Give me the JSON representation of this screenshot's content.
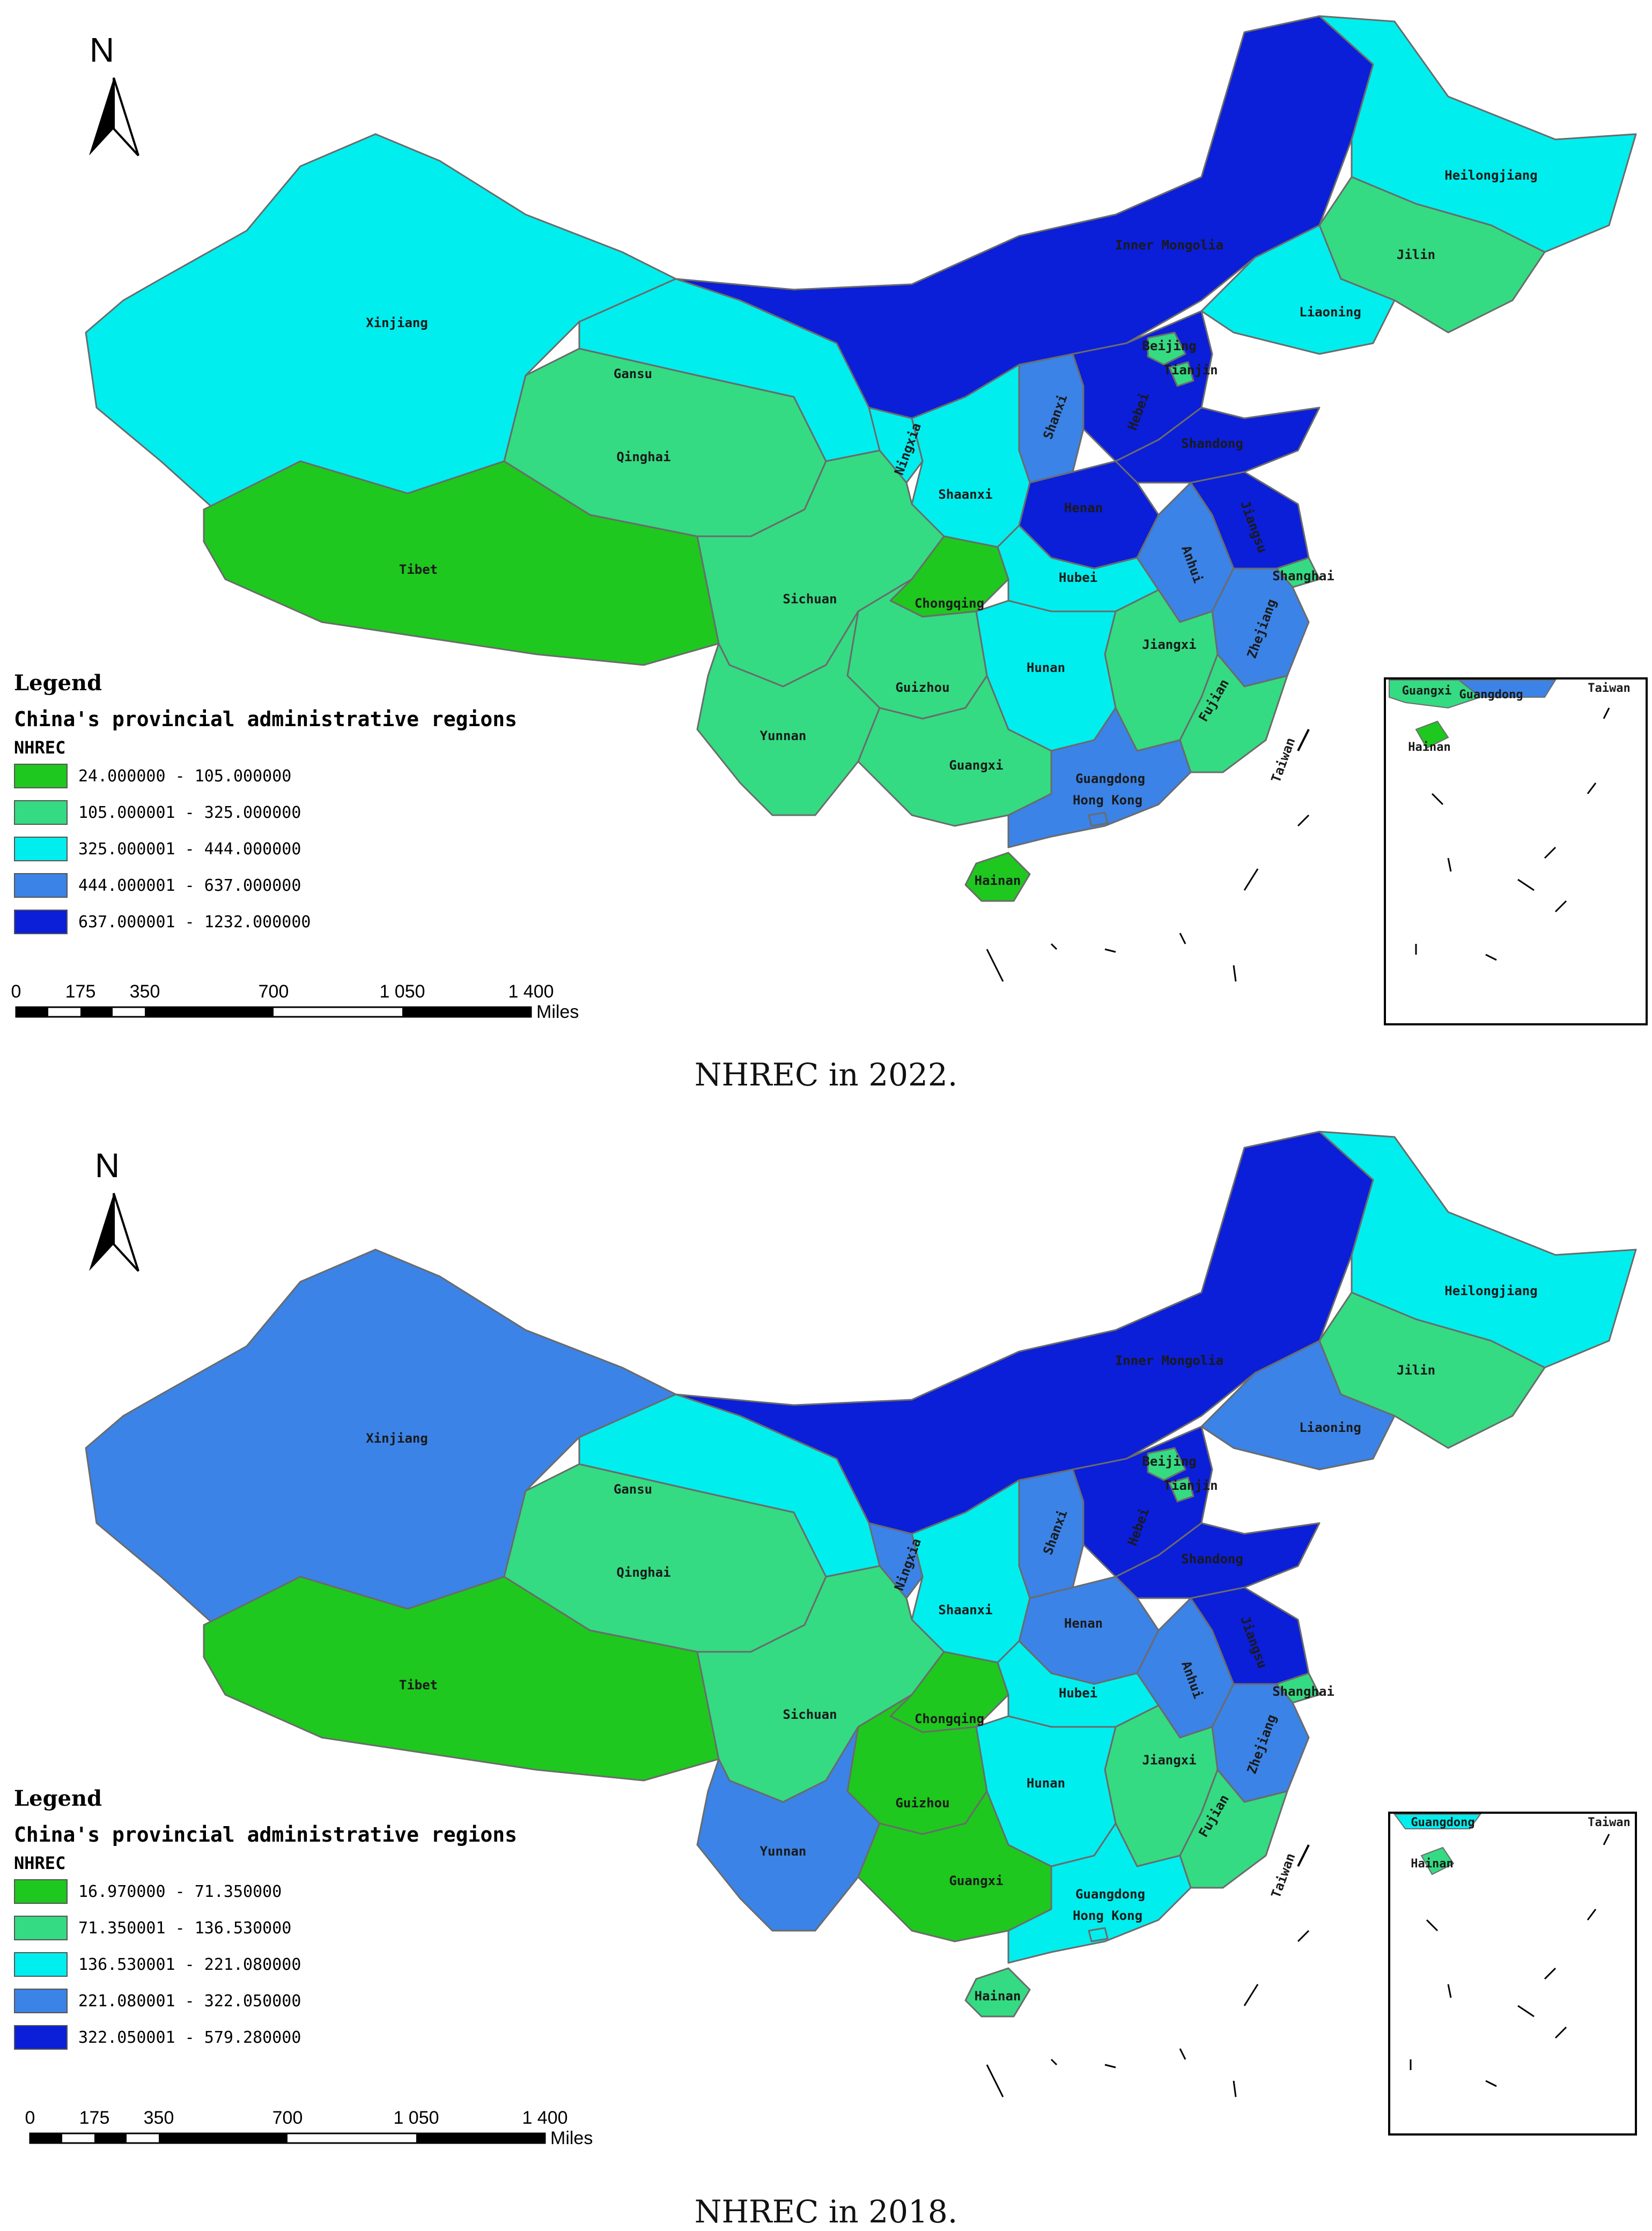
{
  "colors": {
    "class1": "#1ec81e",
    "class2": "#34db82",
    "class3": "#00eeee",
    "class4": "#3b83e6",
    "class5": "#0b1ed8"
  },
  "maps": [
    {
      "caption": "NHREC in 2022.",
      "north": "N",
      "legend": {
        "title": "Legend",
        "layer": "China's provincial administrative regions",
        "field": "NHREC",
        "classes": [
          {
            "label": "24.000000 - 105.000000",
            "color": "#1ec81e"
          },
          {
            "label": "105.000001 - 325.000000",
            "color": "#34db82"
          },
          {
            "label": "325.000001 - 444.000000",
            "color": "#00eeee"
          },
          {
            "label": "444.000001 - 637.000000",
            "color": "#3b83e6"
          },
          {
            "label": "637.000001 - 1232.000000",
            "color": "#0b1ed8"
          }
        ]
      },
      "scale": {
        "ticks": [
          "0",
          "175",
          "350",
          "700",
          "1 050",
          "1 400"
        ],
        "unit": "Miles"
      },
      "regions": {
        "Xinjiang": 3,
        "Tibet": 1,
        "Qinghai": 2,
        "Gansu": 3,
        "Inner Mongolia": 5,
        "Heilongjiang": 3,
        "Jilin": 2,
        "Liaoning": 3,
        "Beijing": 2,
        "Tianjin": 2,
        "Hebei": 5,
        "Shanxi": 4,
        "Shandong": 5,
        "Henan": 5,
        "Shaanxi": 3,
        "Ningxia": 3,
        "Sichuan": 2,
        "Chongqing": 1,
        "Hubei": 3,
        "Anhui": 4,
        "Jiangsu": 5,
        "Shanghai": 2,
        "Zhejiang": 4,
        "Jiangxi": 2,
        "Hunan": 3,
        "Guizhou": 2,
        "Yunnan": 2,
        "Guangxi": 2,
        "Guangdong": 4,
        "Fujian": 2,
        "Hainan": 1,
        "Hong Kong": 4,
        "Taiwan": 0
      },
      "inset": {
        "labels": [
          "Guangxi",
          "Guangdong",
          "Taiwan",
          "Hainan"
        ]
      }
    },
    {
      "caption": "NHREC in 2018.",
      "north": "N",
      "legend": {
        "title": "Legend",
        "layer": "China's provincial administrative regions",
        "field": "NHREC",
        "classes": [
          {
            "label": "16.970000 - 71.350000",
            "color": "#1ec81e"
          },
          {
            "label": "71.350001 - 136.530000",
            "color": "#34db82"
          },
          {
            "label": "136.530001 - 221.080000",
            "color": "#00eeee"
          },
          {
            "label": "221.080001 - 322.050000",
            "color": "#3b83e6"
          },
          {
            "label": "322.050001 - 579.280000",
            "color": "#0b1ed8"
          }
        ]
      },
      "scale": {
        "ticks": [
          "0",
          "175",
          "350",
          "700",
          "1 050",
          "1 400"
        ],
        "unit": "Miles"
      },
      "regions": {
        "Xinjiang": 4,
        "Tibet": 1,
        "Qinghai": 2,
        "Gansu": 3,
        "Inner Mongolia": 5,
        "Heilongjiang": 3,
        "Jilin": 2,
        "Liaoning": 4,
        "Beijing": 2,
        "Tianjin": 2,
        "Hebei": 5,
        "Shanxi": 4,
        "Shandong": 5,
        "Henan": 4,
        "Shaanxi": 3,
        "Ningxia": 4,
        "Sichuan": 2,
        "Chongqing": 1,
        "Hubei": 3,
        "Anhui": 4,
        "Jiangsu": 5,
        "Shanghai": 2,
        "Zhejiang": 4,
        "Jiangxi": 2,
        "Hunan": 3,
        "Guizhou": 1,
        "Yunnan": 4,
        "Guangxi": 1,
        "Guangdong": 3,
        "Fujian": 2,
        "Hainan": 2,
        "Hong Kong": 3,
        "Taiwan": 0
      },
      "inset": {
        "labels": [
          "Guangdong",
          "Taiwan",
          "Hainan"
        ]
      }
    }
  ]
}
